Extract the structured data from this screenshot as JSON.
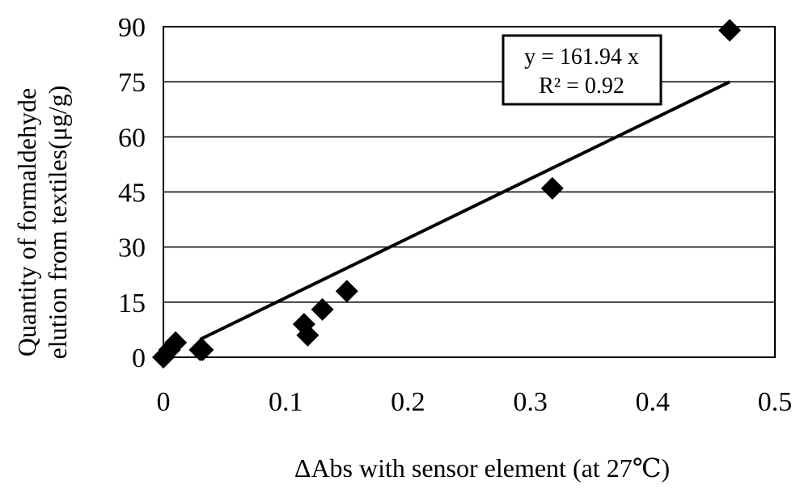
{
  "chart_data": {
    "type": "scatter",
    "title": "",
    "xlabel": "ΔAbs with sensor element (at 27℃)",
    "ylabel_lines": [
      "Quantity of formaldehyde",
      "elution from textiles(μg/g)"
    ],
    "xlim": [
      0,
      0.5
    ],
    "ylim": [
      0,
      90
    ],
    "x_ticks": [
      0,
      0.1,
      0.2,
      0.3,
      0.4,
      0.5
    ],
    "x_tick_labels": [
      "0",
      "0.1",
      "0.2",
      "0.3",
      "0.4",
      "0.5"
    ],
    "y_ticks": [
      0,
      15,
      30,
      45,
      60,
      75,
      90
    ],
    "y_tick_labels": [
      "0",
      "15",
      "30",
      "45",
      "60",
      "75",
      "90"
    ],
    "grid": "horizontal",
    "legend": "none",
    "series": [
      {
        "marker": "diamond",
        "color": "#000000",
        "points": [
          {
            "x": 0.0,
            "y": 0
          },
          {
            "x": 0.005,
            "y": 2
          },
          {
            "x": 0.01,
            "y": 4
          },
          {
            "x": 0.03,
            "y": 2
          },
          {
            "x": 0.032,
            "y": 2
          },
          {
            "x": 0.115,
            "y": 9
          },
          {
            "x": 0.118,
            "y": 6
          },
          {
            "x": 0.13,
            "y": 13
          },
          {
            "x": 0.15,
            "y": 18
          },
          {
            "x": 0.318,
            "y": 46
          },
          {
            "x": 0.463,
            "y": 89
          }
        ]
      }
    ],
    "trendline": {
      "slope": 161.94,
      "x_range": [
        0.03,
        0.463
      ],
      "color": "#000000"
    },
    "annotation": {
      "lines": [
        "y = 161.94 x",
        "R² = 0.92"
      ],
      "position": "top-right"
    }
  }
}
